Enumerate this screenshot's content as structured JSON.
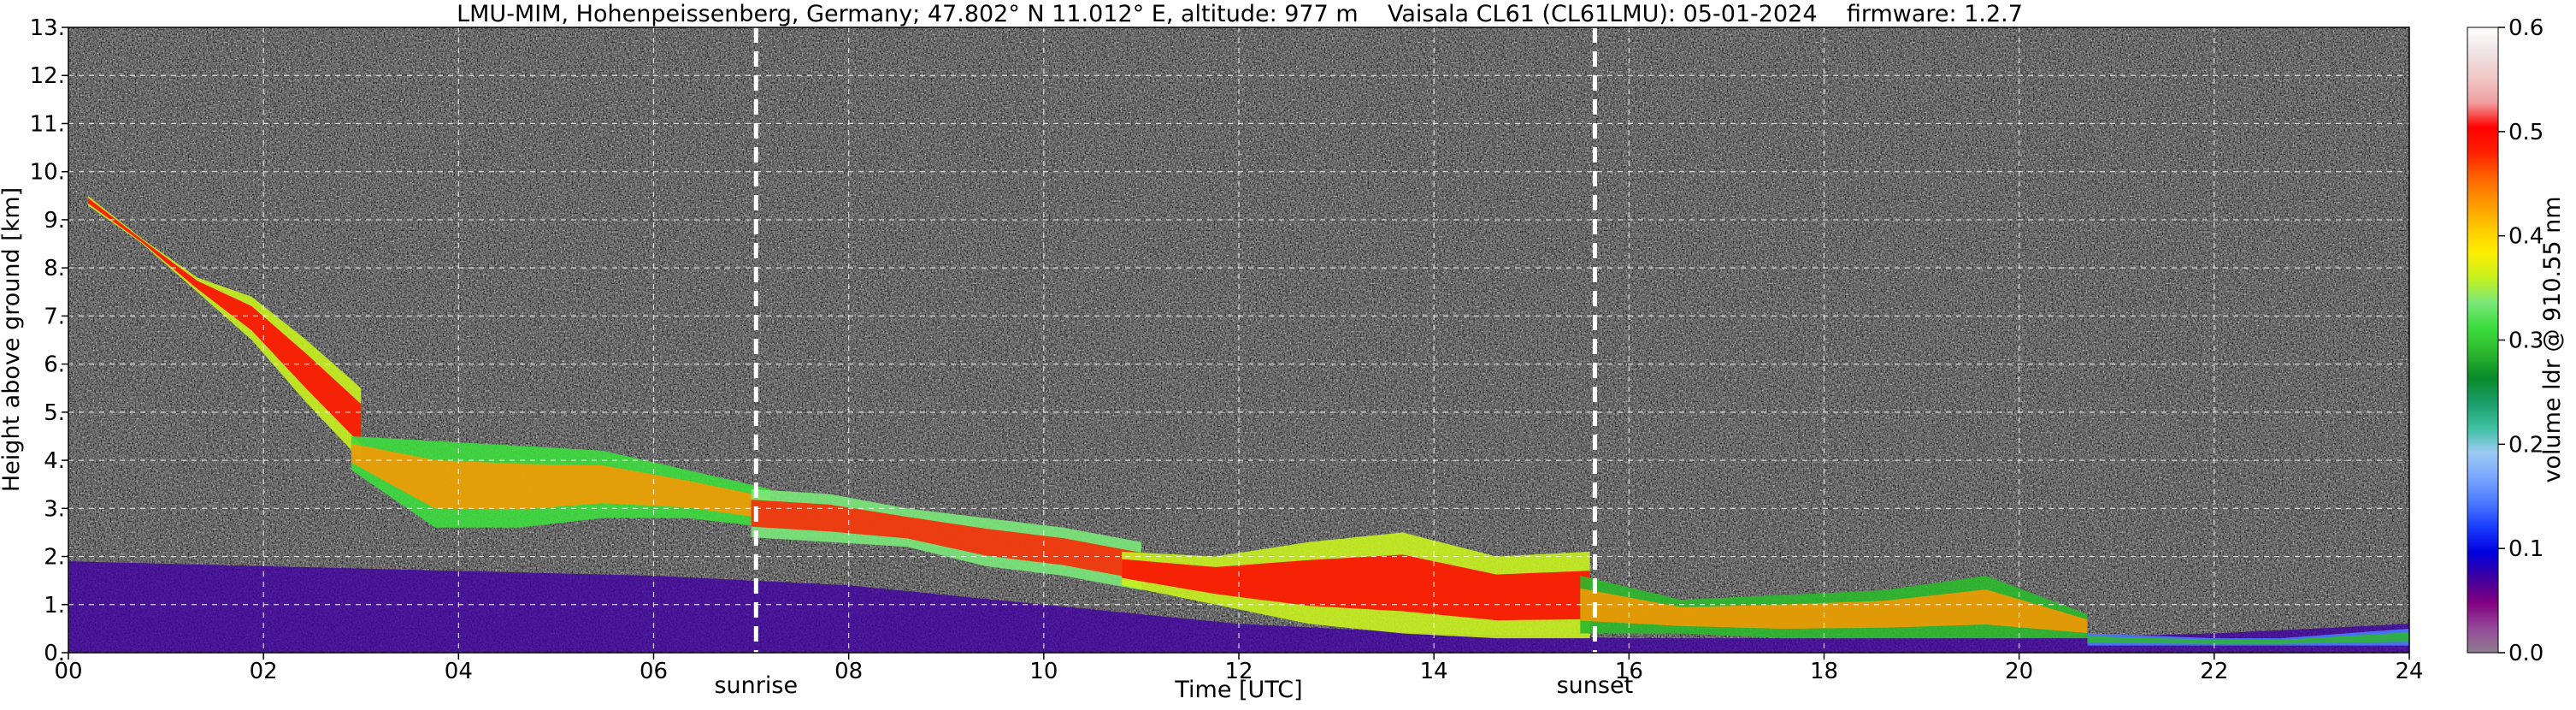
{
  "chart_data": {
    "type": "heatmap",
    "title": "LMU-MIM, Hohenpeissenberg, Germany; 47.802° N 11.012° E, altitude: 977 m    Vaisala CL61 (CL61LMU): 05-01-2024    firmware: 1.2.7",
    "xlabel": "Time [UTC]",
    "ylabel": "Height above ground [km]",
    "colorbar_label": "volume ldr @ 910.55 nm",
    "xlim": [
      0,
      24
    ],
    "ylim": [
      0,
      13
    ],
    "clim": [
      0,
      0.6
    ],
    "x_ticks": [
      "00",
      "02",
      "04",
      "06",
      "08",
      "10",
      "12",
      "14",
      "16",
      "18",
      "20",
      "22",
      "24"
    ],
    "y_ticks": [
      "0.",
      "1.",
      "2.",
      "3.",
      "4.",
      "5.",
      "6.",
      "7.",
      "8.",
      "9.",
      "10.",
      "11.",
      "12.",
      "13."
    ],
    "colorbar_ticks": [
      "0.0",
      "0.1",
      "0.2",
      "0.3",
      "0.4",
      "0.5",
      "0.6"
    ],
    "grid": true,
    "annotations": [
      {
        "text": "sunrise",
        "x": 7.05
      },
      {
        "text": "sunset",
        "x": 15.65
      }
    ],
    "colormap": [
      "#8e7e8e",
      "#96489a",
      "#800080",
      "#3f00a0",
      "#0000dd",
      "#1a3cff",
      "#4c79ff",
      "#7aa6ff",
      "#9ccaf2",
      "#3cc0a0",
      "#1a9e6a",
      "#0a8a2a",
      "#2cb82c",
      "#3ddc3d",
      "#7ae87a",
      "#c8f01e",
      "#ffee00",
      "#ffc800",
      "#ff9600",
      "#ff6400",
      "#ff2000",
      "#ff0000",
      "#f0a0a0",
      "#f0c8c8",
      "#f0e4e4",
      "#ffffff"
    ],
    "cloud_layers": [
      {
        "x0": 0.2,
        "x1": 3.0,
        "base_km": [
          9.3,
          8.5,
          7.5,
          6.5,
          5.2,
          4.0
        ],
        "top_km": [
          9.5,
          8.6,
          7.8,
          7.4,
          6.5,
          5.5
        ],
        "ldr": 0.45
      },
      {
        "x0": 2.9,
        "x1": 7.2,
        "base_km": [
          3.8,
          2.6,
          2.6,
          2.8,
          2.8,
          2.6
        ],
        "top_km": [
          4.5,
          4.4,
          4.3,
          4.2,
          3.8,
          3.4
        ],
        "ldr": 0.38
      },
      {
        "x0": 7.0,
        "x1": 11.0,
        "base_km": [
          2.4,
          2.3,
          2.2,
          1.8,
          1.6,
          1.3
        ],
        "top_km": [
          3.4,
          3.3,
          3.0,
          2.8,
          2.6,
          2.3
        ],
        "ldr": 0.42
      },
      {
        "x0": 10.8,
        "x1": 15.6,
        "base_km": [
          1.4,
          1.0,
          0.6,
          0.4,
          0.3,
          0.3
        ],
        "top_km": [
          2.1,
          2.0,
          2.3,
          2.5,
          2.0,
          2.1
        ],
        "ldr": 0.44
      },
      {
        "x0": 15.5,
        "x1": 20.7,
        "base_km": [
          0.4,
          0.4,
          0.3,
          0.3,
          0.3,
          0.3
        ],
        "top_km": [
          1.6,
          1.1,
          1.2,
          1.3,
          1.6,
          0.8
        ],
        "ldr": 0.36
      },
      {
        "x0": 20.7,
        "x1": 24.0,
        "base_km": [
          0.15,
          0.15,
          0.15,
          0.15,
          0.15,
          0.15
        ],
        "top_km": [
          0.4,
          0.35,
          0.3,
          0.3,
          0.4,
          0.5
        ],
        "ldr": 0.22
      }
    ],
    "boundary_layer": {
      "top_km": [
        1.9,
        1.8,
        1.7,
        1.6,
        1.4,
        1.0,
        0.6,
        0.4,
        0.3,
        0.3,
        0.3,
        0.4,
        0.6
      ],
      "ldr": 0.06
    }
  }
}
